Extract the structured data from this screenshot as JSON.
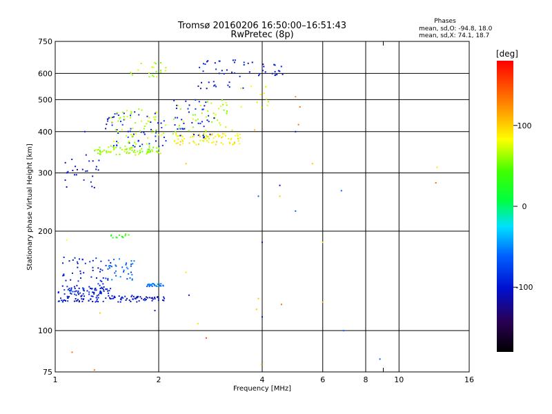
{
  "title": "Tromsø 20160206 16:50:00–16:51:43",
  "subtitle": "RwPretec (8p)",
  "stats": {
    "heading": "Phases",
    "line1": "mean, sd,O: -94.8, 18.0",
    "line2": "mean, sd,X:  74.1, 18.7"
  },
  "colorbar": {
    "unit": "[deg]",
    "ticks": [
      {
        "value": 100,
        "label": "100"
      },
      {
        "value": 0,
        "label": "0"
      },
      {
        "value": -100,
        "label": "-100"
      }
    ],
    "range": [
      -180,
      180
    ]
  },
  "chart_data": {
    "type": "scatter",
    "xlabel": "Frequency [MHz]",
    "ylabel": "Stationary phase Virtual Height [km]",
    "xscale": "log",
    "yscale": "log",
    "xlim": [
      1,
      16
    ],
    "ylim": [
      75,
      750
    ],
    "xticks": [
      {
        "value": 1,
        "label": "1"
      },
      {
        "value": 2,
        "label": "2"
      },
      {
        "value": 4,
        "label": "4"
      },
      {
        "value": 6,
        "label": "6"
      },
      {
        "value": 8,
        "label": "8"
      },
      {
        "value": 10,
        "label": "10"
      },
      {
        "value": 16,
        "label": "16"
      }
    ],
    "xminor": [
      9
    ],
    "yticks": [
      {
        "value": 75,
        "label": "75"
      },
      {
        "value": 100,
        "label": "100"
      },
      {
        "value": 200,
        "label": "200"
      },
      {
        "value": 300,
        "label": "300"
      },
      {
        "value": 400,
        "label": "400"
      },
      {
        "value": 500,
        "label": "500"
      },
      {
        "value": 600,
        "label": "600"
      },
      {
        "value": 750,
        "label": "750"
      }
    ],
    "grid": true,
    "color_variable": "phase [deg]",
    "clusters": [
      {
        "f": [
          1.02,
          1.45
        ],
        "h": [
          128,
          137
        ],
        "phase": -95,
        "n": 70
      },
      {
        "f": [
          1.02,
          1.75
        ],
        "h": [
          122,
          128
        ],
        "phase": -100,
        "n": 80
      },
      {
        "f": [
          1.05,
          1.45
        ],
        "h": [
          138,
          168
        ],
        "phase": -92,
        "n": 45
      },
      {
        "f": [
          1.4,
          1.7
        ],
        "h": [
          142,
          165
        ],
        "phase": -65,
        "n": 35
      },
      {
        "f": [
          1.75,
          2.1
        ],
        "h": [
          123,
          127
        ],
        "phase": -100,
        "n": 25
      },
      {
        "f": [
          1.85,
          2.1
        ],
        "h": [
          136,
          139
        ],
        "phase": -55,
        "n": 25
      },
      {
        "f": [
          1.45,
          1.65
        ],
        "h": [
          190,
          196
        ],
        "phase": 30,
        "n": 12
      },
      {
        "f": [
          1.05,
          1.35
        ],
        "h": [
          270,
          330
        ],
        "phase": -100,
        "n": 25
      },
      {
        "f": [
          1.3,
          2.05
        ],
        "h": [
          340,
          360
        ],
        "phase": 70,
        "n": 80
      },
      {
        "f": [
          1.4,
          2.1
        ],
        "h": [
          360,
          460
        ],
        "phase": -90,
        "n": 60
      },
      {
        "f": [
          1.45,
          2.1
        ],
        "h": [
          360,
          470
        ],
        "phase": 80,
        "n": 60
      },
      {
        "f": [
          1.6,
          2.1
        ],
        "h": [
          585,
          650
        ],
        "phase": 75,
        "n": 20
      },
      {
        "f": [
          2.2,
          3.5
        ],
        "h": [
          365,
          395
        ],
        "phase": 105,
        "n": 80
      },
      {
        "f": [
          2.2,
          3.3
        ],
        "h": [
          380,
          500
        ],
        "phase": 75,
        "n": 50
      },
      {
        "f": [
          2.2,
          2.9
        ],
        "h": [
          380,
          500
        ],
        "phase": -95,
        "n": 40
      },
      {
        "f": [
          2.6,
          3.6
        ],
        "h": [
          540,
          660
        ],
        "phase": -100,
        "n": 35
      },
      {
        "f": [
          3.6,
          4.6
        ],
        "h": [
          590,
          650
        ],
        "phase": -100,
        "n": 20
      },
      {
        "f": [
          3.4,
          4.4
        ],
        "h": [
          470,
          560
        ],
        "phase": 90,
        "n": 12
      }
    ],
    "points": [
      {
        "f": 1.22,
        "h": 400,
        "phase": -95
      },
      {
        "f": 1.23,
        "h": 340,
        "phase": -95
      },
      {
        "f": 1.35,
        "h": 113,
        "phase": 120
      },
      {
        "f": 1.12,
        "h": 86,
        "phase": 150
      },
      {
        "f": 1.3,
        "h": 76,
        "phase": 150
      },
      {
        "f": 1.08,
        "h": 188,
        "phase": 100
      },
      {
        "f": 1.95,
        "h": 115,
        "phase": -100
      },
      {
        "f": 2.4,
        "h": 150,
        "phase": 110
      },
      {
        "f": 2.45,
        "h": 128,
        "phase": -100
      },
      {
        "f": 2.6,
        "h": 105,
        "phase": 110
      },
      {
        "f": 2.75,
        "h": 95,
        "phase": 160
      },
      {
        "f": 2.4,
        "h": 320,
        "phase": 120
      },
      {
        "f": 3.8,
        "h": 405,
        "phase": 120
      },
      {
        "f": 3.9,
        "h": 255,
        "phase": -60
      },
      {
        "f": 4.0,
        "h": 185,
        "phase": -100
      },
      {
        "f": 4.0,
        "h": 110,
        "phase": -100
      },
      {
        "f": 3.9,
        "h": 125,
        "phase": 120
      },
      {
        "f": 3.85,
        "h": 116,
        "phase": 120
      },
      {
        "f": 3.98,
        "h": 79,
        "phase": 120
      },
      {
        "f": 4.5,
        "h": 275,
        "phase": -100
      },
      {
        "f": 4.5,
        "h": 255,
        "phase": 120
      },
      {
        "f": 4.55,
        "h": 120,
        "phase": 150
      },
      {
        "f": 5.0,
        "h": 230,
        "phase": -60
      },
      {
        "f": 5.0,
        "h": 400,
        "phase": -100
      },
      {
        "f": 5.1,
        "h": 420,
        "phase": 150
      },
      {
        "f": 5.15,
        "h": 475,
        "phase": 150
      },
      {
        "f": 5.0,
        "h": 510,
        "phase": 140
      },
      {
        "f": 5.6,
        "h": 320,
        "phase": 120
      },
      {
        "f": 6.0,
        "h": 185,
        "phase": 110
      },
      {
        "f": 6.0,
        "h": 122,
        "phase": 130
      },
      {
        "f": 6.8,
        "h": 265,
        "phase": -60
      },
      {
        "f": 6.9,
        "h": 100,
        "phase": -60
      },
      {
        "f": 8.8,
        "h": 82,
        "phase": -60
      },
      {
        "f": 12.8,
        "h": 280,
        "phase": 150
      },
      {
        "f": 12.9,
        "h": 312,
        "phase": 110
      }
    ]
  }
}
